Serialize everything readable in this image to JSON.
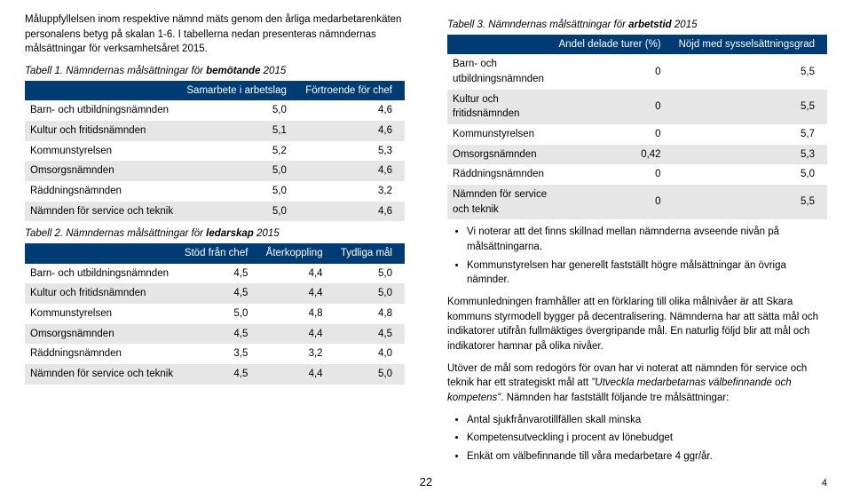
{
  "left": {
    "intro": "Måluppfyllelsen inom respektive nämnd mäts genom den årliga medarbetarenkäten personalens betyg på skalan 1-6. I tabellerna nedan presenteras nämndernas målsättningar för verksamhetsåret 2015.",
    "t1": {
      "caption_prefix": "Tabell 1. Nämndernas målsättningar för ",
      "caption_bold": "bemötande",
      "caption_suffix": " 2015",
      "head": [
        "",
        "Samarbete i arbetslag",
        "Förtroende för chef"
      ],
      "rows": [
        [
          "Barn- och utbildningsnämnden",
          "5,0",
          "4,6"
        ],
        [
          "Kultur och fritidsnämnden",
          "5,1",
          "4,6"
        ],
        [
          "Kommunstyrelsen",
          "5,2",
          "5,3"
        ],
        [
          "Omsorgsnämnden",
          "5,0",
          "4,6"
        ],
        [
          "Räddningsnämnden",
          "5,0",
          "3,2"
        ],
        [
          "Nämnden för service och teknik",
          "5,0",
          "4,6"
        ]
      ]
    },
    "t2": {
      "caption_prefix": "Tabell 2. Nämndernas målsättningar för ",
      "caption_bold": "ledarskap",
      "caption_suffix": " 2015",
      "head": [
        "",
        "Stöd från chef",
        "Återkoppling",
        "Tydliga mål"
      ],
      "rows": [
        [
          "Barn- och utbildningsnämnden",
          "4,5",
          "4,4",
          "5,0"
        ],
        [
          "Kultur och fritidsnämnden",
          "4,5",
          "4,4",
          "5,0"
        ],
        [
          "Kommunstyrelsen",
          "5,0",
          "4,8",
          "4,8"
        ],
        [
          "Omsorgsnämnden",
          "4,5",
          "4,4",
          "4,5"
        ],
        [
          "Räddningsnämnden",
          "3,5",
          "3,2",
          "4,0"
        ],
        [
          "Nämnden för service och teknik",
          "4,5",
          "4,4",
          "5,0"
        ]
      ]
    }
  },
  "right": {
    "t3": {
      "caption_prefix": "Tabell 3. Nämndernas målsättningar för ",
      "caption_bold": "arbetstid",
      "caption_suffix": " 2015",
      "head": [
        "",
        "Andel delade turer (%)",
        "Nöjd med sysselsättningsgrad"
      ],
      "rows": [
        [
          "Barn- och utbildningsnämnden",
          "0",
          "5,5"
        ],
        [
          "Kultur och fritidsnämnden",
          "0",
          "5,5"
        ],
        [
          "Kommunstyrelsen",
          "0",
          "5,7"
        ],
        [
          "Omsorgsnämnden",
          "0,42",
          "5,3"
        ],
        [
          "Räddningsnämnden",
          "0",
          "5,0"
        ],
        [
          "Nämnden för service och teknik",
          "0",
          "5,5"
        ]
      ]
    },
    "bullets1": [
      "Vi noterar att det finns skillnad mellan nämnderna avseende nivån på målsättningarna.",
      "Kommunstyrelsen har generellt fastställt högre målsättningar än övriga nämnder."
    ],
    "para1": "Kommunledningen framhåller att en förklaring till olika målnivåer är att Skara kommuns styrmodell bygger på decentralisering. Nämnderna har att sätta mål och indikatorer utifrån fullmäktiges övergripande mål. En naturlig följd blir att mål och indikatorer hamnar på olika nivåer.",
    "para2_a": "Utöver de mål som redogörs för ovan har vi noterat att nämnden för service och teknik har ett strategiskt mål att ",
    "para2_q": "\"Utveckla medarbetarnas välbefinnande och kompetens\"",
    "para2_b": ". Nämnden har fastställt följande tre målsättningar:",
    "bullets2": [
      "Antal sjukfrånvarotillfällen skall minska",
      "Kompetensutveckling i procent av lönebudget",
      "Enkät om välbefinnande till våra medarbetare 4 ggr/år."
    ]
  },
  "page_center": "22",
  "page_right": "4",
  "colors": {
    "header_bg": "#003b73",
    "row_alt": "#e6e6e6"
  }
}
